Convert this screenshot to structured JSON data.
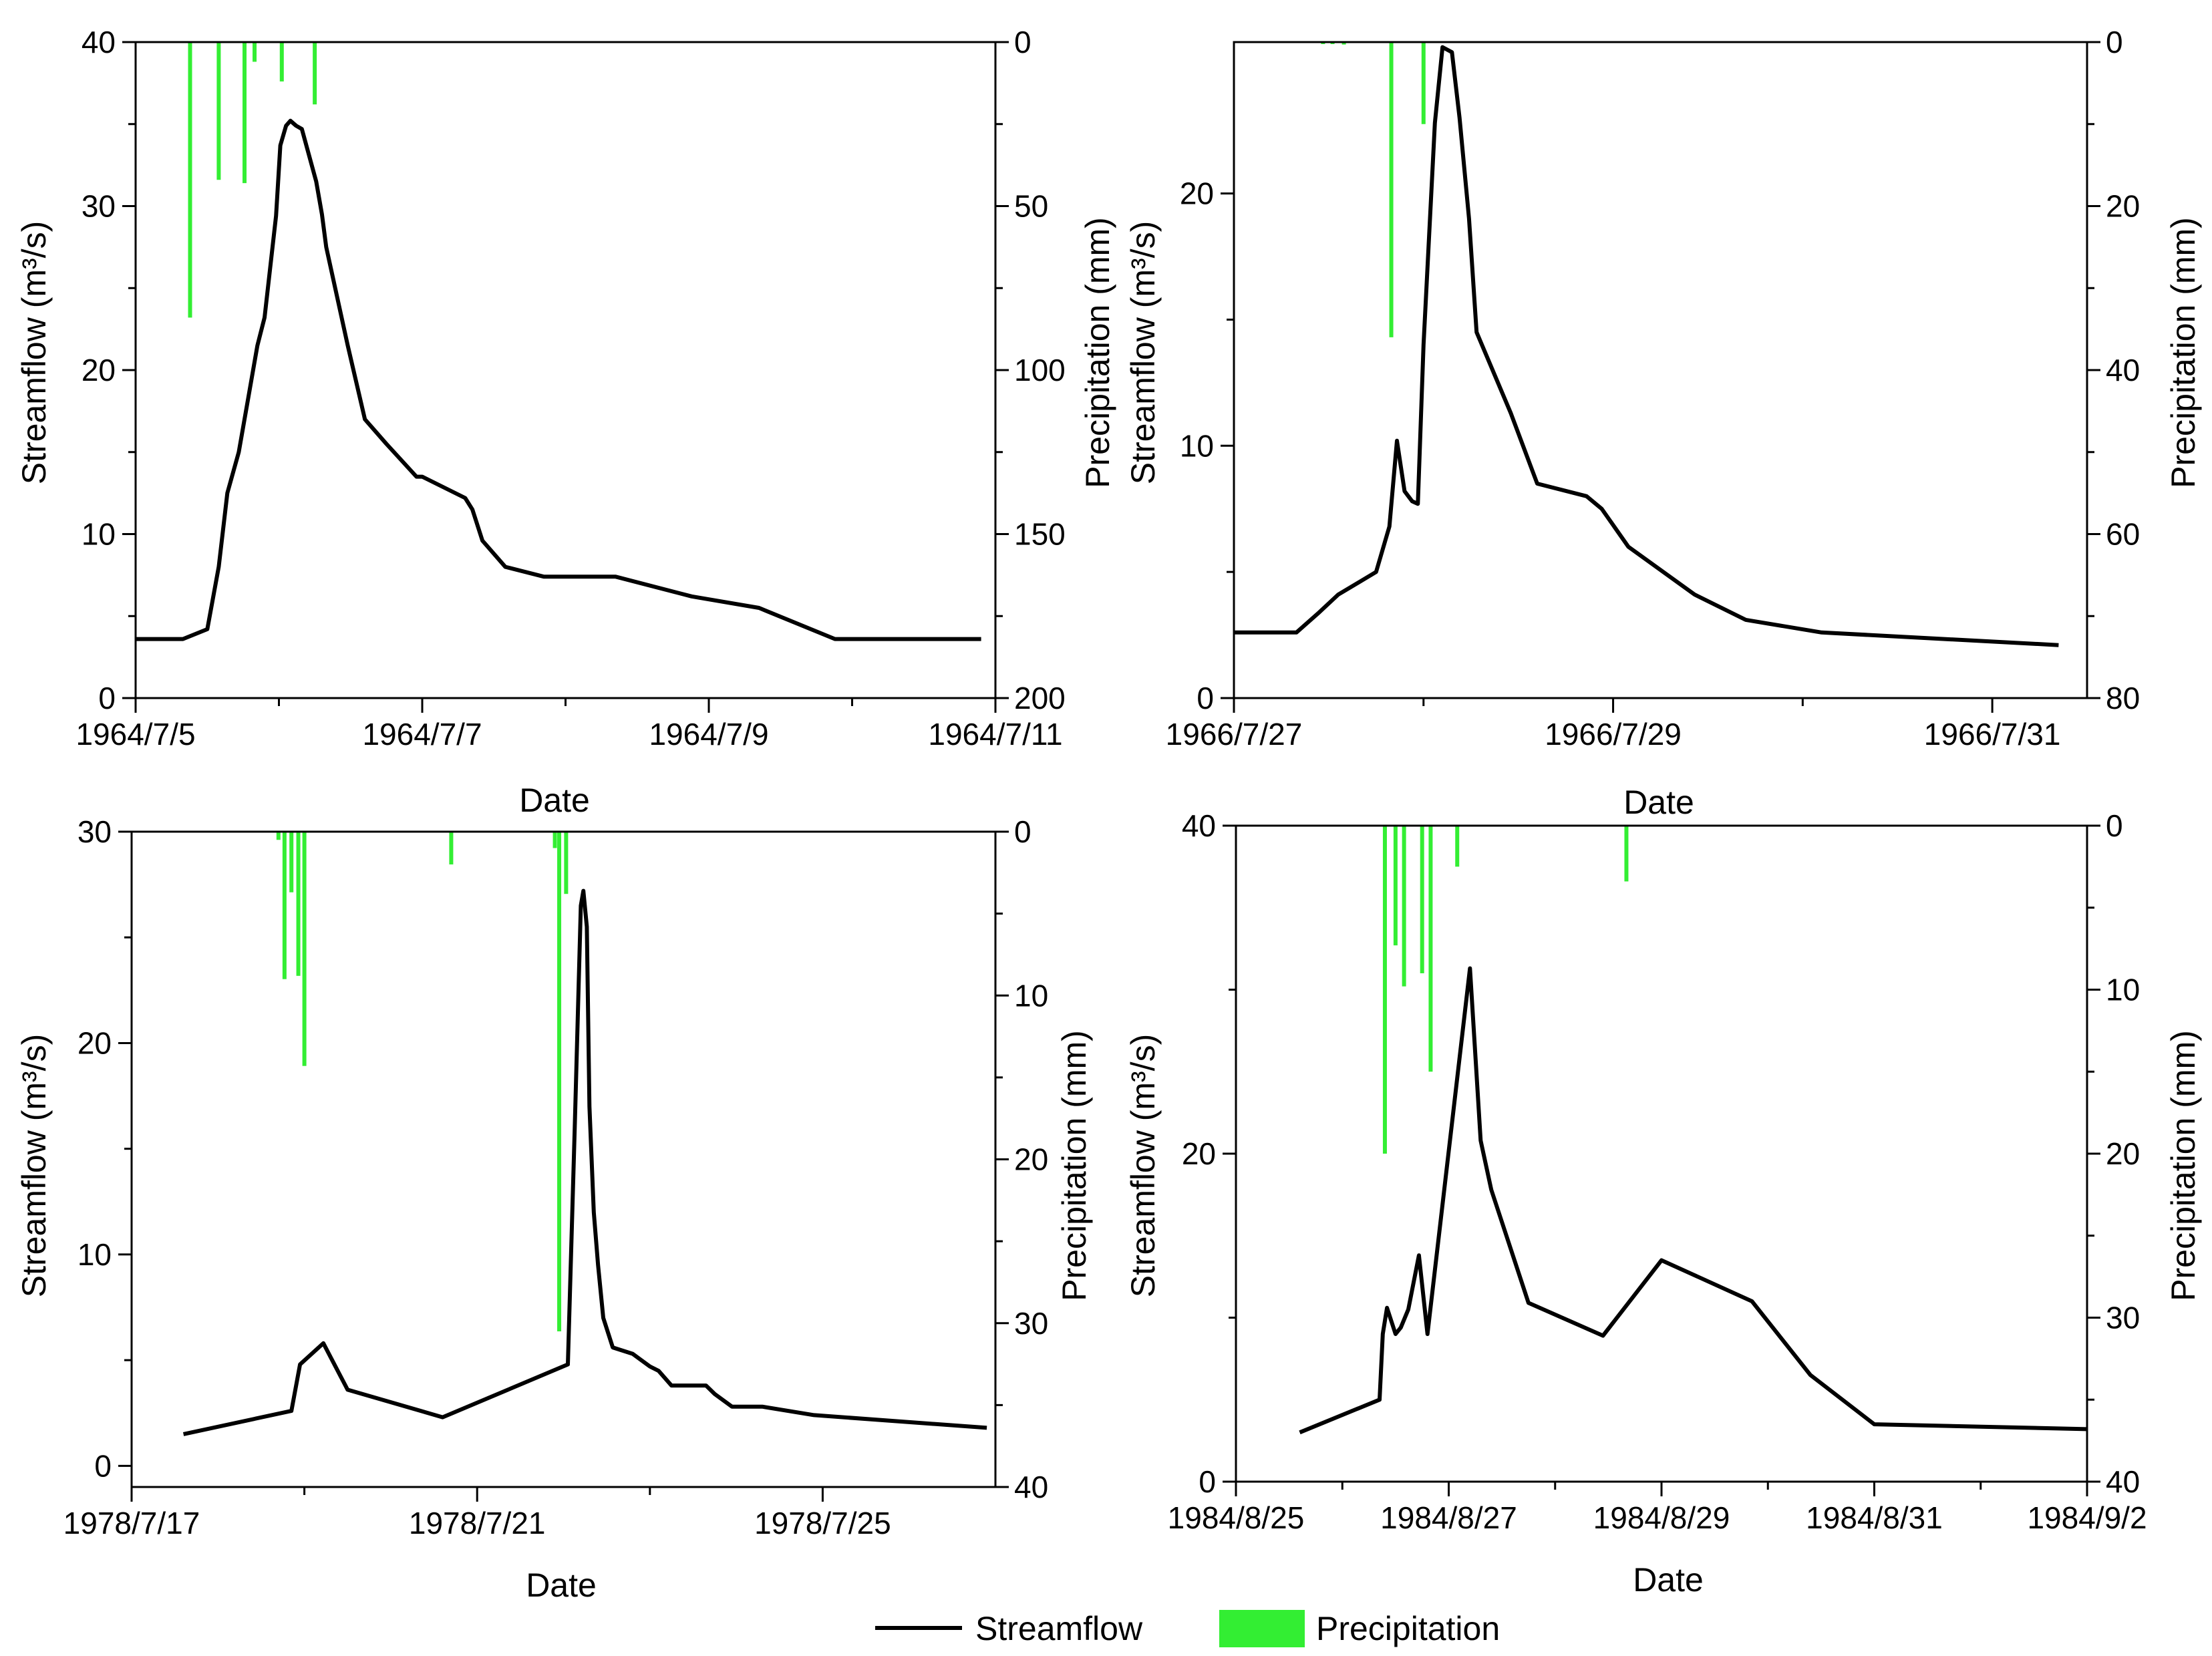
{
  "legend": {
    "streamflow_label": "Streamflow",
    "precipitation_label": "Precipitation"
  },
  "colors": {
    "streamflow": "#000000",
    "precipitation": "#33ee33"
  },
  "chart_data": [
    {
      "type": "line+bar",
      "panel": "top-left",
      "xlabel": "Date",
      "ylabel": "Streamflow",
      "ylabel_unit": "(m3/s)",
      "y2label": "Precipitation (mm)",
      "xrange_days": [
        0,
        6
      ],
      "x_ticks": [
        {
          "day": 0,
          "label": "1964/7/5"
        },
        {
          "day": 2,
          "label": "1964/7/7"
        },
        {
          "day": 4,
          "label": "1964/7/9"
        },
        {
          "day": 6,
          "label": "1964/7/11"
        }
      ],
      "ylim": [
        0,
        40
      ],
      "y_ticks": [
        0,
        10,
        20,
        30,
        40
      ],
      "y2lim": [
        0,
        200
      ],
      "y2_ticks": [
        0,
        50,
        100,
        150,
        200
      ],
      "streamflow": {
        "x": [
          0,
          0.33,
          0.5,
          0.58,
          0.64,
          0.72,
          0.78,
          0.85,
          0.9,
          0.98,
          1.01,
          1.05,
          1.08,
          1.12,
          1.16,
          1.26,
          1.3,
          1.33,
          1.48,
          1.6,
          1.75,
          1.96,
          2.0,
          2.3,
          2.35,
          2.42,
          2.58,
          2.85,
          3.35,
          3.88,
          4.35,
          4.88,
          5.9
        ],
        "y": [
          3.6,
          3.6,
          4.2,
          8,
          12.5,
          15,
          18,
          21.5,
          23.2,
          29.4,
          33.7,
          34.9,
          35.2,
          34.9,
          34.7,
          31.5,
          29.5,
          27.5,
          21.5,
          17,
          15.5,
          13.5,
          13.5,
          12.2,
          11.5,
          9.6,
          8,
          7.4,
          7.4,
          6.2,
          5.5,
          3.6,
          3.6
        ]
      },
      "precipitation": {
        "x": [
          0.38,
          0.58,
          0.76,
          0.83,
          1.02,
          1.25
        ],
        "mm": [
          84,
          42,
          43,
          6,
          12,
          19
        ]
      }
    },
    {
      "type": "line+bar",
      "panel": "top-right",
      "xlabel": "Date",
      "ylabel": "Streamflow",
      "ylabel_unit": "(m3/s)",
      "y2label": "Precipitation (mm)",
      "xrange_days": [
        0,
        4.5
      ],
      "x_ticks": [
        {
          "day": 0,
          "label": "1966/7/27"
        },
        {
          "day": 2,
          "label": "1966/7/29"
        },
        {
          "day": 4,
          "label": "1966/7/31"
        }
      ],
      "ylim": [
        0,
        26
      ],
      "y_ticks": [
        0,
        10,
        20
      ],
      "y2lim": [
        0,
        80
      ],
      "y2_ticks": [
        0,
        20,
        40,
        60,
        80
      ],
      "streamflow": {
        "x": [
          0,
          0.33,
          0.45,
          0.55,
          0.75,
          0.82,
          0.86,
          0.9,
          0.94,
          0.97,
          1.0,
          1.06,
          1.1,
          1.15,
          1.19,
          1.24,
          1.28,
          1.46,
          1.6,
          1.86,
          1.94,
          2.08,
          2.43,
          2.7,
          3.1,
          4.35
        ],
        "y": [
          2.6,
          2.6,
          3.4,
          4.1,
          5.0,
          6.8,
          10.2,
          8.2,
          7.8,
          7.7,
          14.0,
          22.8,
          25.8,
          25.6,
          23.0,
          19.0,
          14.5,
          11.3,
          8.5,
          8.0,
          7.5,
          6.0,
          4.1,
          3.1,
          2.6,
          2.1
        ]
      },
      "precipitation": {
        "x": [
          0.47,
          0.52,
          0.58,
          0.83,
          1.0
        ],
        "mm": [
          0.2,
          0.2,
          0.3,
          36,
          10
        ]
      }
    },
    {
      "type": "line+bar",
      "panel": "bottom-left",
      "xlabel": "Date",
      "ylabel": "Streamflow",
      "ylabel_unit": "(m3/s)",
      "y2label": "Precipitation (mm)",
      "xrange_days": [
        0,
        10
      ],
      "x_ticks": [
        {
          "day": 0,
          "label": "1978/7/17"
        },
        {
          "day": 4,
          "label": "1978/7/21"
        },
        {
          "day": 8,
          "label": "1978/7/25"
        }
      ],
      "ylim": [
        -1,
        30
      ],
      "y_ticks": [
        0,
        10,
        20,
        30
      ],
      "y2lim": [
        0,
        40
      ],
      "y2_ticks": [
        0,
        10,
        20,
        30,
        40
      ],
      "streamflow": {
        "x": [
          0.6,
          1.85,
          1.95,
          2.22,
          2.5,
          3.6,
          5.05,
          5.13,
          5.2,
          5.23,
          5.27,
          5.3,
          5.35,
          5.4,
          5.46,
          5.57,
          5.8,
          6.0,
          6.1,
          6.25,
          6.35,
          6.65,
          6.75,
          6.95,
          7.3,
          7.9,
          9.9
        ],
        "y": [
          1.5,
          2.6,
          4.8,
          5.8,
          3.6,
          2.3,
          4.8,
          16,
          26.5,
          27.2,
          25.5,
          17,
          12,
          9.5,
          7.0,
          5.6,
          5.3,
          4.7,
          4.5,
          3.8,
          3.8,
          3.8,
          3.4,
          2.8,
          2.8,
          2.4,
          1.8
        ]
      },
      "precipitation": {
        "x": [
          1.7,
          1.77,
          1.85,
          1.93,
          2.0,
          3.7,
          4.9,
          4.95,
          5.03
        ],
        "mm": [
          0.5,
          9.0,
          3.7,
          8.8,
          14.3,
          2.0,
          1.0,
          30.5,
          3.8
        ]
      }
    },
    {
      "type": "line+bar",
      "panel": "bottom-right",
      "xlabel": "Date",
      "ylabel": "Streamflow",
      "ylabel_unit": "(m3/s)",
      "y2label": "Precipitation (mm)",
      "xrange_days": [
        0,
        8
      ],
      "x_ticks": [
        {
          "day": 0,
          "label": "1984/8/25"
        },
        {
          "day": 2,
          "label": "1984/8/27"
        },
        {
          "day": 4,
          "label": "1984/8/29"
        },
        {
          "day": 6,
          "label": "1984/8/31"
        },
        {
          "day": 8,
          "label": "1984/9/2"
        }
      ],
      "ylim": [
        0,
        40
      ],
      "y_ticks": [
        0,
        20,
        40
      ],
      "y2lim": [
        0,
        40
      ],
      "y2_ticks": [
        0,
        10,
        20,
        30,
        40
      ],
      "streamflow": {
        "x": [
          0.6,
          1.35,
          1.38,
          1.42,
          1.5,
          1.55,
          1.62,
          1.72,
          1.8,
          2.2,
          2.3,
          2.4,
          2.75,
          3.45,
          4.0,
          4.85,
          5.4,
          6.0,
          8.0
        ],
        "y": [
          3.0,
          5.0,
          9.0,
          10.6,
          9.0,
          9.4,
          10.5,
          13.8,
          9.0,
          31.3,
          20.8,
          17.8,
          10.9,
          8.9,
          13.5,
          11.0,
          6.5,
          3.5,
          3.2
        ]
      },
      "precipitation": {
        "x": [
          1.4,
          1.5,
          1.58,
          1.75,
          1.83,
          2.08,
          3.67
        ],
        "mm": [
          20,
          7.3,
          9.8,
          9.0,
          15.0,
          2.5,
          3.4
        ]
      }
    }
  ]
}
